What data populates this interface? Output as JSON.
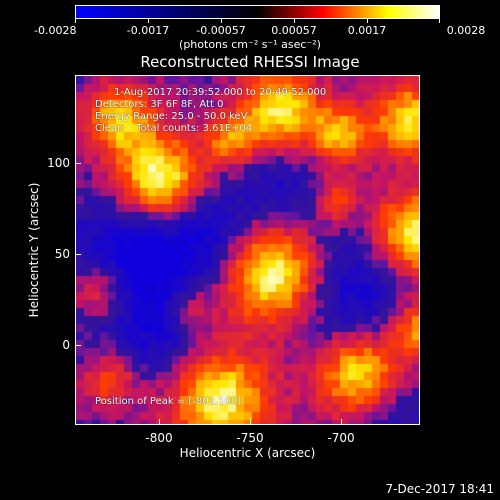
{
  "colorbar": {
    "tick_labels": [
      "-0.0028",
      "-0.0017",
      "-0.00057",
      "0.00057",
      "0.0017",
      "0.0028"
    ],
    "units": "(photons cm⁻² s⁻¹ asec⁻²)",
    "colors": [
      "#0000ff",
      "#000000",
      "#ff0000",
      "#ffff00",
      "#ffffff"
    ]
  },
  "title": "Reconstructed RHESSI Image",
  "overlay": {
    "time_range": "1-Aug-2017 20:39:52.000 to 20:49:52.000",
    "detectors": "Detectors: 3F 6F 8F, Att 0",
    "energy_range": "Energy Range: 25.0 - 50.0 keV",
    "clean_counts": "Clean    Total counts: 3.61E+04",
    "peak_position": "Position of Peak = [-802,100]"
  },
  "x_axis": {
    "title": "Heliocentric X (arcsec)",
    "tick_labels": [
      "-800",
      "-750",
      "-700"
    ]
  },
  "y_axis": {
    "title": "Heliocentric Y (arcsec)",
    "tick_labels": [
      "100",
      "50",
      "0"
    ]
  },
  "footer": {
    "date": "7-Dec-2017 18:41"
  }
}
